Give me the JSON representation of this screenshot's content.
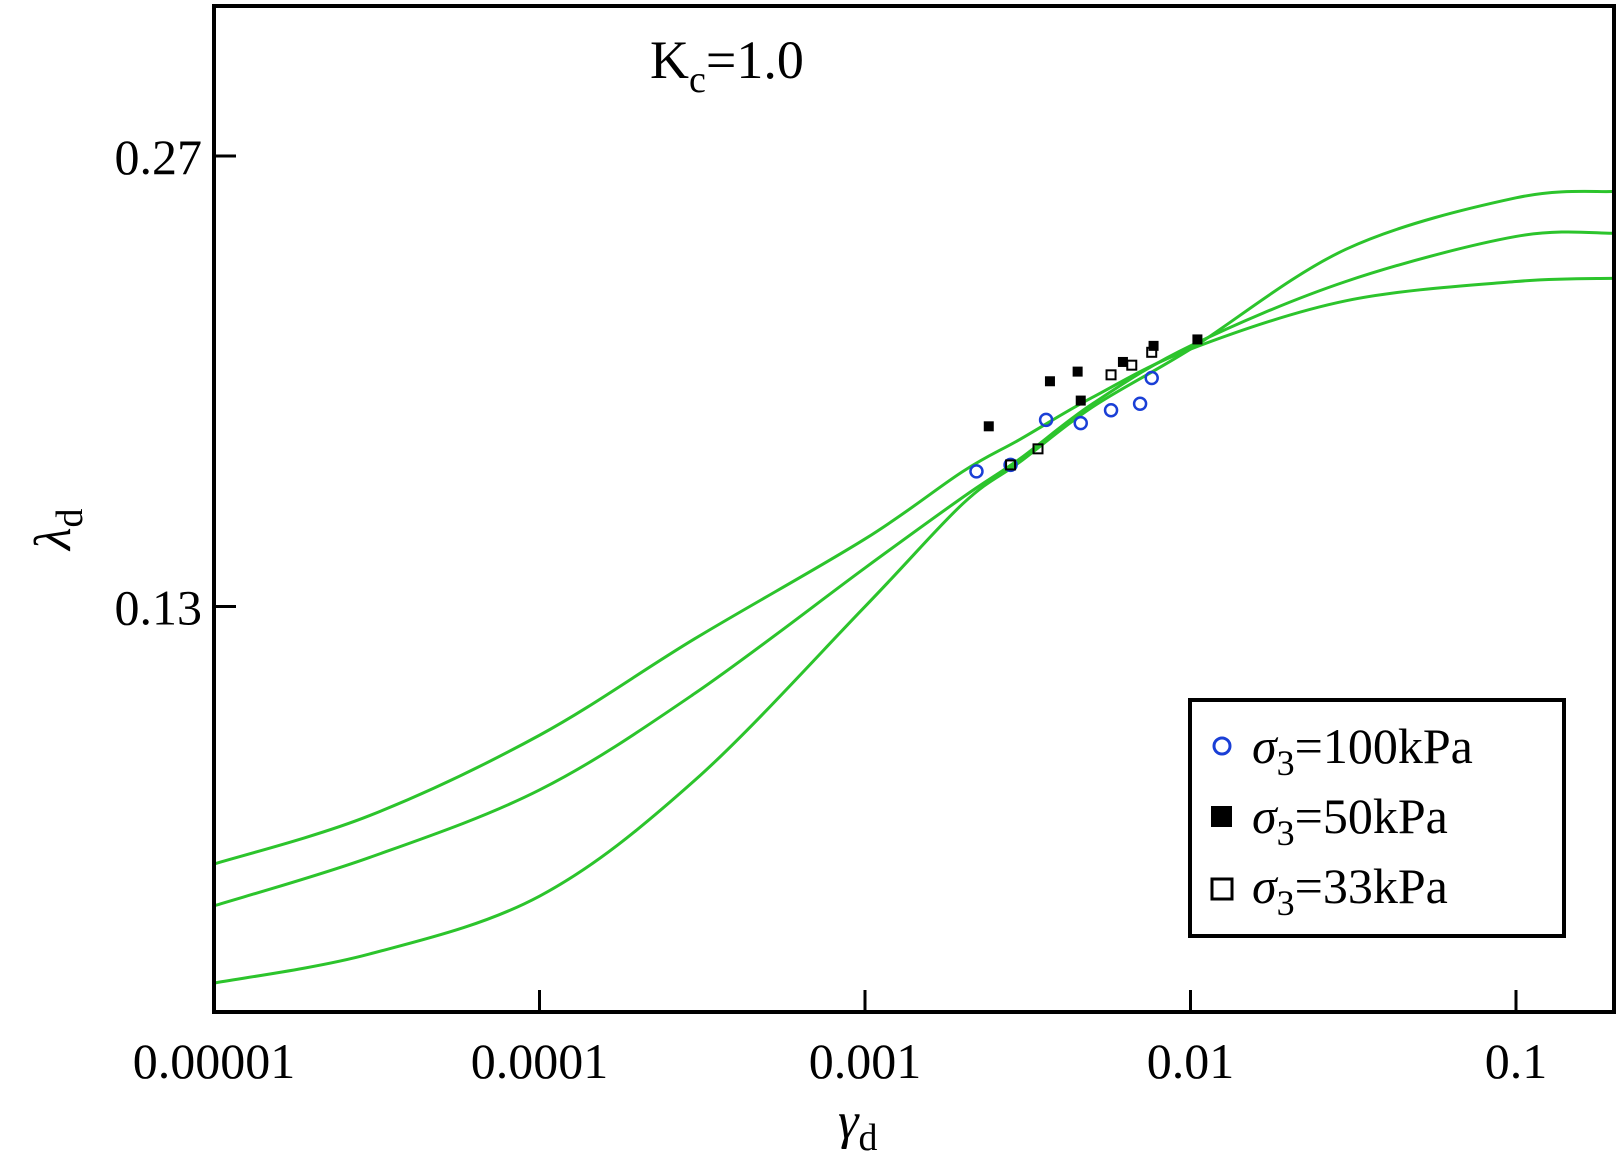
{
  "chart_data": {
    "type": "scatter",
    "title": "",
    "annotation": {
      "main": "K",
      "sub": "c",
      "rest": "=1.0"
    },
    "xlabel": {
      "main": "γ",
      "sub": "d"
    },
    "ylabel": {
      "main": "λ",
      "sub": "d"
    },
    "x_scale": "log",
    "xlim": [
      1e-05,
      0.2
    ],
    "ylim": [
      0.004,
      0.27
    ],
    "x_ticks": [
      1e-05,
      0.0001,
      0.001,
      0.01,
      0.1
    ],
    "x_tick_labels": [
      "0.00001",
      "0.0001",
      "0.001",
      "0.01",
      "0.1"
    ],
    "y_ticks": [
      0.13,
      0.27
    ],
    "y_tick_labels": [
      "0.13",
      "0.27"
    ],
    "legend_position": "bottom-right",
    "series": [
      {
        "name": "σ3=100kPa",
        "label_main": "σ",
        "label_sub": "3",
        "label_rest": "=100kPa",
        "marker": "open-circle",
        "color": "#1a3fd6",
        "x": [
          0.0022,
          0.0028,
          0.0036,
          0.0046,
          0.0057,
          0.007,
          0.0076
        ],
        "y": [
          0.172,
          0.174,
          0.188,
          0.187,
          0.191,
          0.193,
          0.201
        ]
      },
      {
        "name": "σ3=50kPa",
        "label_main": "σ",
        "label_sub": "3",
        "label_rest": "=50kPa",
        "marker": "filled-square",
        "color": "#000000",
        "x": [
          0.0024,
          0.0037,
          0.0045,
          0.0046,
          0.0062,
          0.0077,
          0.0105
        ],
        "y": [
          0.186,
          0.2,
          0.203,
          0.194,
          0.206,
          0.211,
          0.213
        ]
      },
      {
        "name": "σ3=33kPa",
        "label_main": "σ",
        "label_sub": "3",
        "label_rest": "=33kPa",
        "marker": "open-square",
        "color": "#000000",
        "x": [
          0.0028,
          0.0034,
          0.0057,
          0.0066,
          0.0076
        ],
        "y": [
          0.174,
          0.179,
          0.202,
          0.205,
          0.209
        ]
      }
    ],
    "fit_curves": [
      {
        "color": "#2cc42c",
        "x": [
          1e-05,
          3e-05,
          0.0001,
          0.0003,
          0.001,
          0.002,
          0.003,
          0.005,
          0.01,
          0.03,
          0.1,
          0.2
        ],
        "y": [
          0.05,
          0.065,
          0.09,
          0.12,
          0.151,
          0.172,
          0.182,
          0.195,
          0.21,
          0.225,
          0.231,
          0.232
        ]
      },
      {
        "color": "#2cc42c",
        "x": [
          1e-05,
          3e-05,
          0.0001,
          0.0003,
          0.001,
          0.002,
          0.003,
          0.005,
          0.01,
          0.03,
          0.1,
          0.2
        ],
        "y": [
          0.037,
          0.052,
          0.073,
          0.103,
          0.142,
          0.164,
          0.176,
          0.193,
          0.211,
          0.231,
          0.245,
          0.246
        ]
      },
      {
        "color": "#2cc42c",
        "x": [
          1e-05,
          3e-05,
          0.0001,
          0.0003,
          0.001,
          0.002,
          0.003,
          0.005,
          0.01,
          0.03,
          0.1,
          0.2
        ],
        "y": [
          0.013,
          0.022,
          0.04,
          0.076,
          0.13,
          0.162,
          0.175,
          0.192,
          0.21,
          0.241,
          0.257,
          0.259
        ]
      }
    ]
  }
}
